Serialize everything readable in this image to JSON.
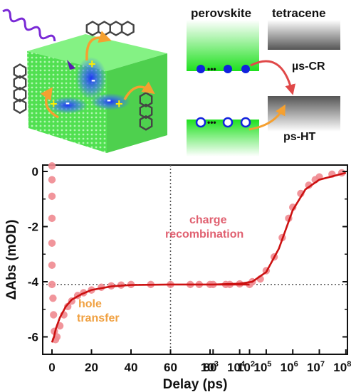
{
  "diagram": {
    "perovskite_label": "perovskite",
    "tetracene_label": "tetracene",
    "cr_label": "µs-CR",
    "ht_label": "ps-HT",
    "ellipsis": "•••",
    "charge_plus": "+",
    "charge_minus": "-"
  },
  "chart_data": {
    "type": "line",
    "xlabel": "Delay (ps)",
    "ylabel": "ΔAbs (mOD)",
    "x_scale": "linear 0–100 ps, then log 10^2–10^8 ps",
    "x_ticks_linear": [
      "0",
      "20",
      "40",
      "60",
      "80"
    ],
    "x_ticks_log": [
      {
        "base": "10",
        "exp": "2"
      },
      {
        "base": "10",
        "exp": "3"
      },
      {
        "base": "10",
        "exp": "4"
      },
      {
        "base": "10",
        "exp": "5"
      },
      {
        "base": "10",
        "exp": "6"
      },
      {
        "base": "10",
        "exp": "7"
      },
      {
        "base": "10",
        "exp": "8"
      }
    ],
    "y_ticks": [
      "0",
      "-2",
      "-4",
      "-6"
    ],
    "ylim": [
      -6.5,
      0.3
    ],
    "reference_lines": {
      "x": 60,
      "y": -4.1
    },
    "annotations": [
      {
        "text": "charge",
        "color": "#e06070"
      },
      {
        "text": "recombination",
        "color": "#e06070"
      },
      {
        "text": "hole",
        "color": "#f0a040"
      },
      {
        "text": "transfer",
        "color": "#f0a040"
      }
    ],
    "series": [
      {
        "role": "data",
        "color": "#f08a90",
        "points": [
          [
            0,
            0.2
          ],
          [
            0,
            -0.3
          ],
          [
            0,
            -0.9
          ],
          [
            0,
            -1.7
          ],
          [
            0,
            -2.6
          ],
          [
            0,
            -3.4
          ],
          [
            0,
            -4.1
          ],
          [
            0.5,
            -4.6
          ],
          [
            0.8,
            -5.2
          ],
          [
            1.2,
            -5.8
          ],
          [
            1.8,
            -6.1
          ],
          [
            2.5,
            -6.0
          ],
          [
            4,
            -5.6
          ],
          [
            6,
            -5.2
          ],
          [
            8,
            -4.9
          ],
          [
            10,
            -4.7
          ],
          [
            13,
            -4.5
          ],
          [
            16,
            -4.4
          ],
          [
            20,
            -4.3
          ],
          [
            25,
            -4.2
          ],
          [
            30,
            -4.15
          ],
          [
            35,
            -4.12
          ],
          [
            40,
            -4.1
          ],
          [
            50,
            -4.1
          ],
          [
            60,
            -4.1
          ],
          [
            70,
            -4.1
          ],
          [
            80,
            -4.1
          ],
          [
            90,
            -4.1
          ],
          [
            100,
            -4.1
          ],
          [
            300,
            -4.1
          ],
          [
            1000,
            -4.1
          ],
          [
            3000,
            -4.1
          ],
          [
            10000,
            -4.08
          ],
          [
            30000,
            -4.0
          ],
          [
            60000,
            -3.9
          ],
          [
            100000,
            -3.6
          ],
          [
            200000,
            -3.1
          ],
          [
            400000,
            -2.4
          ],
          [
            700000,
            -1.7
          ],
          [
            1000000,
            -1.3
          ],
          [
            2000000,
            -0.8
          ],
          [
            4000000,
            -0.5
          ],
          [
            7000000,
            -0.3
          ],
          [
            10000000,
            -0.2
          ],
          [
            30000000,
            -0.1
          ],
          [
            70000000,
            -0.05
          ]
        ]
      },
      {
        "role": "fit",
        "color": "#cc1111",
        "points": [
          [
            0,
            -6.2
          ],
          [
            1,
            -6.0
          ],
          [
            2,
            -5.7
          ],
          [
            4,
            -5.3
          ],
          [
            7,
            -4.9
          ],
          [
            10,
            -4.65
          ],
          [
            15,
            -4.45
          ],
          [
            20,
            -4.3
          ],
          [
            30,
            -4.17
          ],
          [
            40,
            -4.12
          ],
          [
            60,
            -4.1
          ],
          [
            100,
            -4.1
          ],
          [
            1000,
            -4.1
          ],
          [
            10000,
            -4.07
          ],
          [
            30000,
            -4.0
          ],
          [
            100000,
            -3.65
          ],
          [
            300000,
            -2.8
          ],
          [
            1000000,
            -1.4
          ],
          [
            3000000,
            -0.65
          ],
          [
            10000000,
            -0.3
          ],
          [
            100000000,
            -0.05
          ]
        ]
      }
    ]
  }
}
